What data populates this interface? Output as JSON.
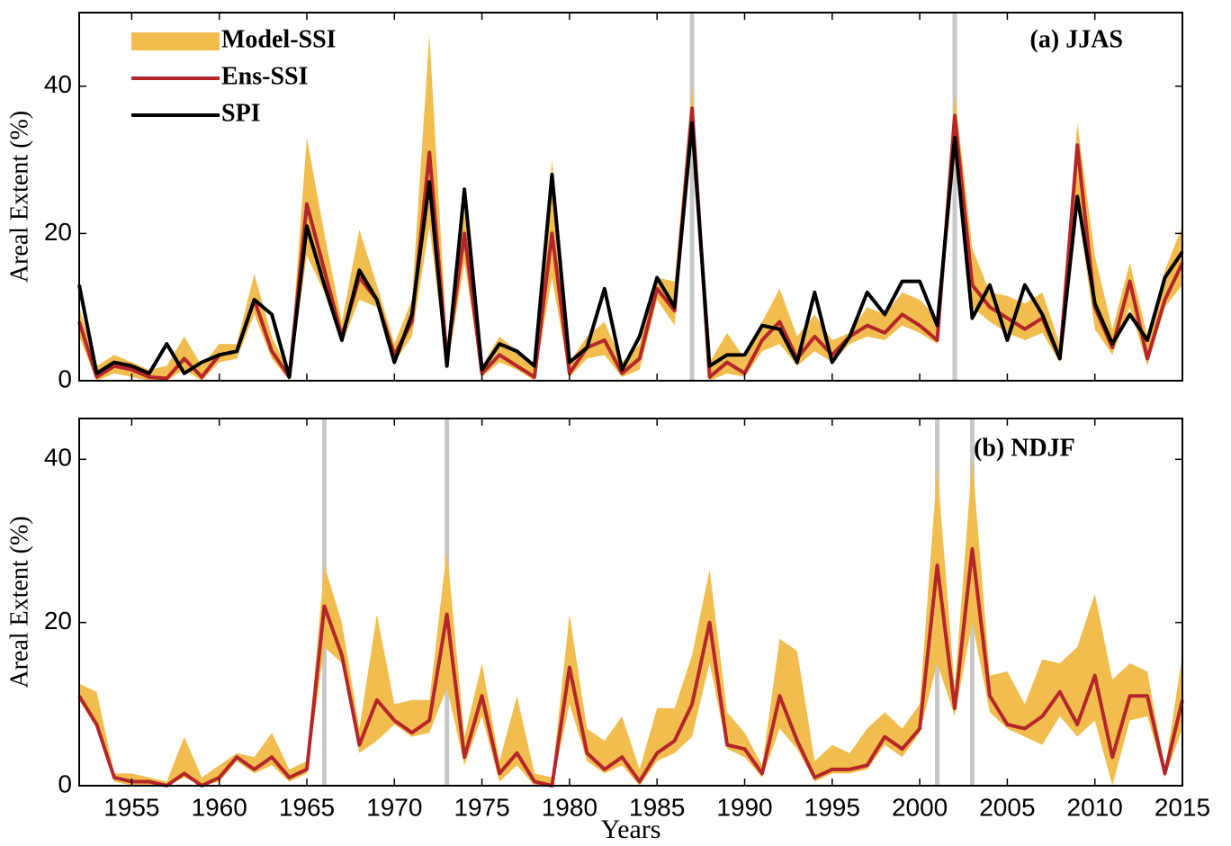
{
  "chart_data": [
    {
      "type": "line",
      "title": "(a) JJAS",
      "ylabel": "Areal Extent (%)",
      "x": [
        1952,
        1953,
        1954,
        1955,
        1956,
        1957,
        1958,
        1959,
        1960,
        1961,
        1962,
        1963,
        1964,
        1965,
        1966,
        1967,
        1968,
        1969,
        1970,
        1971,
        1972,
        1973,
        1974,
        1975,
        1976,
        1977,
        1978,
        1979,
        1980,
        1981,
        1982,
        1983,
        1984,
        1985,
        1986,
        1987,
        1988,
        1989,
        1990,
        1991,
        1992,
        1993,
        1994,
        1995,
        1996,
        1997,
        1998,
        1999,
        2000,
        2001,
        2002,
        2003,
        2004,
        2005,
        2006,
        2007,
        2008,
        2009,
        2010,
        2011,
        2012,
        2013,
        2014,
        2015
      ],
      "xlim": [
        1952,
        2015
      ],
      "xticks": [
        1955,
        1960,
        1965,
        1970,
        1975,
        1980,
        1985,
        1990,
        1995,
        2000,
        2005,
        2010,
        2015
      ],
      "ylim": [
        0,
        50
      ],
      "yticks": [
        0,
        20,
        40
      ],
      "highlight_years": [
        1987,
        2002
      ],
      "highlight_color": "#c8c8c8",
      "legend": "upper left",
      "series": [
        {
          "name": "Model-SSI",
          "color": "#f0bd4e",
          "upper": [
            10,
            2,
            3.5,
            2.5,
            1.5,
            2,
            6,
            2,
            5,
            5,
            14.5,
            6,
            1,
            33,
            20,
            8,
            20.5,
            13,
            5,
            11,
            47,
            5,
            23,
            2,
            6,
            4,
            2,
            30,
            2.5,
            6,
            8,
            2.5,
            5,
            14,
            13.5,
            40,
            2.5,
            6.5,
            3,
            8,
            12.5,
            6,
            9,
            5.5,
            6.5,
            10,
            9,
            12,
            11,
            8.5,
            39,
            18,
            12,
            11.5,
            10.5,
            12,
            5,
            35,
            17,
            7,
            16,
            6,
            15,
            21
          ],
          "lower": [
            6,
            0,
            1,
            0.5,
            0,
            0,
            1.5,
            0,
            2.5,
            3,
            9,
            3,
            0,
            17,
            12,
            5,
            11,
            10,
            2.5,
            6,
            21,
            1.5,
            16,
            0.5,
            2.5,
            1.5,
            0,
            14,
            0.5,
            3,
            3.5,
            0.5,
            1.5,
            11,
            7.5,
            33,
            0,
            1,
            0.5,
            4,
            5,
            2,
            4,
            2.5,
            5,
            6,
            5.5,
            7.5,
            6.5,
            5,
            30,
            10,
            8,
            6.5,
            5.5,
            6.5,
            2.5,
            24,
            7,
            3.5,
            10,
            2,
            10,
            13
          ]
        },
        {
          "name": "Ens-SSI",
          "color": "#b5262a",
          "values": [
            8,
            0.5,
            2,
            1.5,
            0.5,
            0.3,
            3,
            0.5,
            3.5,
            4,
            11,
            4,
            0.5,
            24,
            15,
            6,
            14,
            11,
            3.5,
            8,
            31,
            3,
            20,
            1,
            3.5,
            2,
            0.5,
            20,
            1,
            4.5,
            5.5,
            1,
            3,
            12.5,
            9.5,
            37,
            0.5,
            2.5,
            1,
            5.5,
            8,
            3,
            6,
            3.5,
            6,
            7.5,
            6.5,
            9,
            7.5,
            5.5,
            36,
            13,
            10,
            8.5,
            7,
            8.5,
            3,
            32,
            10,
            4.5,
            13.5,
            3,
            11,
            16
          ]
        },
        {
          "name": "SPI",
          "color": "#000000",
          "values": [
            13,
            1,
            2.5,
            2,
            1,
            5,
            1,
            2.5,
            3.5,
            4,
            11,
            9,
            0.5,
            21,
            13,
            5.5,
            15,
            11,
            2.5,
            9,
            27,
            2,
            26,
            1.5,
            5,
            4,
            2,
            28,
            2.5,
            4.5,
            12.5,
            1.5,
            6,
            14,
            10,
            35,
            2,
            3.5,
            3.5,
            7.5,
            7,
            2.5,
            12,
            2.5,
            6,
            12,
            9,
            13.5,
            13.5,
            7.5,
            33,
            8.5,
            13,
            5.5,
            13,
            9,
            3,
            25,
            10.5,
            5,
            9,
            5.5,
            14,
            17.5
          ]
        }
      ]
    },
    {
      "type": "line",
      "title": "(b) NDJF",
      "ylabel": "Areal Extent (%)",
      "xlabel": "Years",
      "x": [
        1952,
        1953,
        1954,
        1955,
        1956,
        1957,
        1958,
        1959,
        1960,
        1961,
        1962,
        1963,
        1964,
        1965,
        1966,
        1967,
        1968,
        1969,
        1970,
        1971,
        1972,
        1973,
        1974,
        1975,
        1976,
        1977,
        1978,
        1979,
        1980,
        1981,
        1982,
        1983,
        1984,
        1985,
        1986,
        1987,
        1988,
        1989,
        1990,
        1991,
        1992,
        1993,
        1994,
        1995,
        1996,
        1997,
        1998,
        1999,
        2000,
        2001,
        2002,
        2003,
        2004,
        2005,
        2006,
        2007,
        2008,
        2009,
        2010,
        2011,
        2012,
        2013,
        2014,
        2015
      ],
      "xlim": [
        1952,
        2015
      ],
      "xticks": [
        1955,
        1960,
        1965,
        1970,
        1975,
        1980,
        1985,
        1990,
        1995,
        2000,
        2005,
        2010,
        2015
      ],
      "ylim": [
        0,
        45
      ],
      "yticks": [
        0,
        20,
        40
      ],
      "highlight_years": [
        1966,
        1973,
        2001,
        2003
      ],
      "highlight_color": "#c8c8c8",
      "series": [
        {
          "color": "#f0bd4e",
          "upper": [
            12.5,
            11.5,
            1.5,
            1.5,
            1,
            0.5,
            6,
            1,
            2.5,
            4,
            3.5,
            6.5,
            2,
            3,
            27,
            20,
            7,
            21,
            10,
            10.5,
            10.5,
            29,
            6,
            15,
            3,
            11,
            1.5,
            1,
            21,
            7,
            5.5,
            8.5,
            2,
            9.5,
            9.5,
            16,
            26.5,
            9,
            6.5,
            2.5,
            18,
            16.5,
            3,
            5,
            4,
            7,
            9,
            7,
            10,
            39,
            12,
            40,
            13.5,
            14,
            10,
            15.5,
            15,
            17,
            23.5,
            13,
            15,
            14,
            2,
            16
          ],
          "lower": [
            10.5,
            7,
            0.5,
            0,
            0,
            0,
            1,
            0,
            0.5,
            3,
            1.5,
            2.5,
            0.5,
            1.5,
            17,
            15,
            4,
            5.5,
            7.5,
            6,
            6.5,
            12,
            2.5,
            8.5,
            0.5,
            2.5,
            0,
            0,
            10,
            3,
            1.5,
            2.5,
            0,
            3,
            4,
            6,
            15,
            4.5,
            3.5,
            1,
            7,
            4.5,
            0.5,
            1.5,
            1.5,
            2,
            5,
            3.5,
            6.5,
            15,
            8.5,
            20,
            9,
            7,
            6,
            5,
            8.5,
            6,
            8,
            0,
            8,
            8.5,
            1,
            7
          ]
        },
        {
          "color": "#b5262a",
          "values": [
            11,
            7.5,
            1,
            0.5,
            0.5,
            0,
            1.5,
            0,
            1,
            3.5,
            2,
            3.5,
            1,
            2,
            22,
            16,
            5,
            10.5,
            8,
            6.5,
            8,
            21,
            3.5,
            11,
            1.5,
            4,
            0.5,
            0,
            14.5,
            4,
            2,
            3.5,
            0.5,
            4,
            5.5,
            10,
            20,
            5,
            4.5,
            1.5,
            11,
            5.5,
            1,
            2,
            2,
            2.5,
            6,
            4.5,
            7,
            27,
            9.5,
            29,
            11,
            7.5,
            7,
            8.5,
            11.5,
            7.5,
            13.5,
            3.5,
            11,
            11,
            1.5,
            10.5
          ]
        }
      ]
    }
  ]
}
